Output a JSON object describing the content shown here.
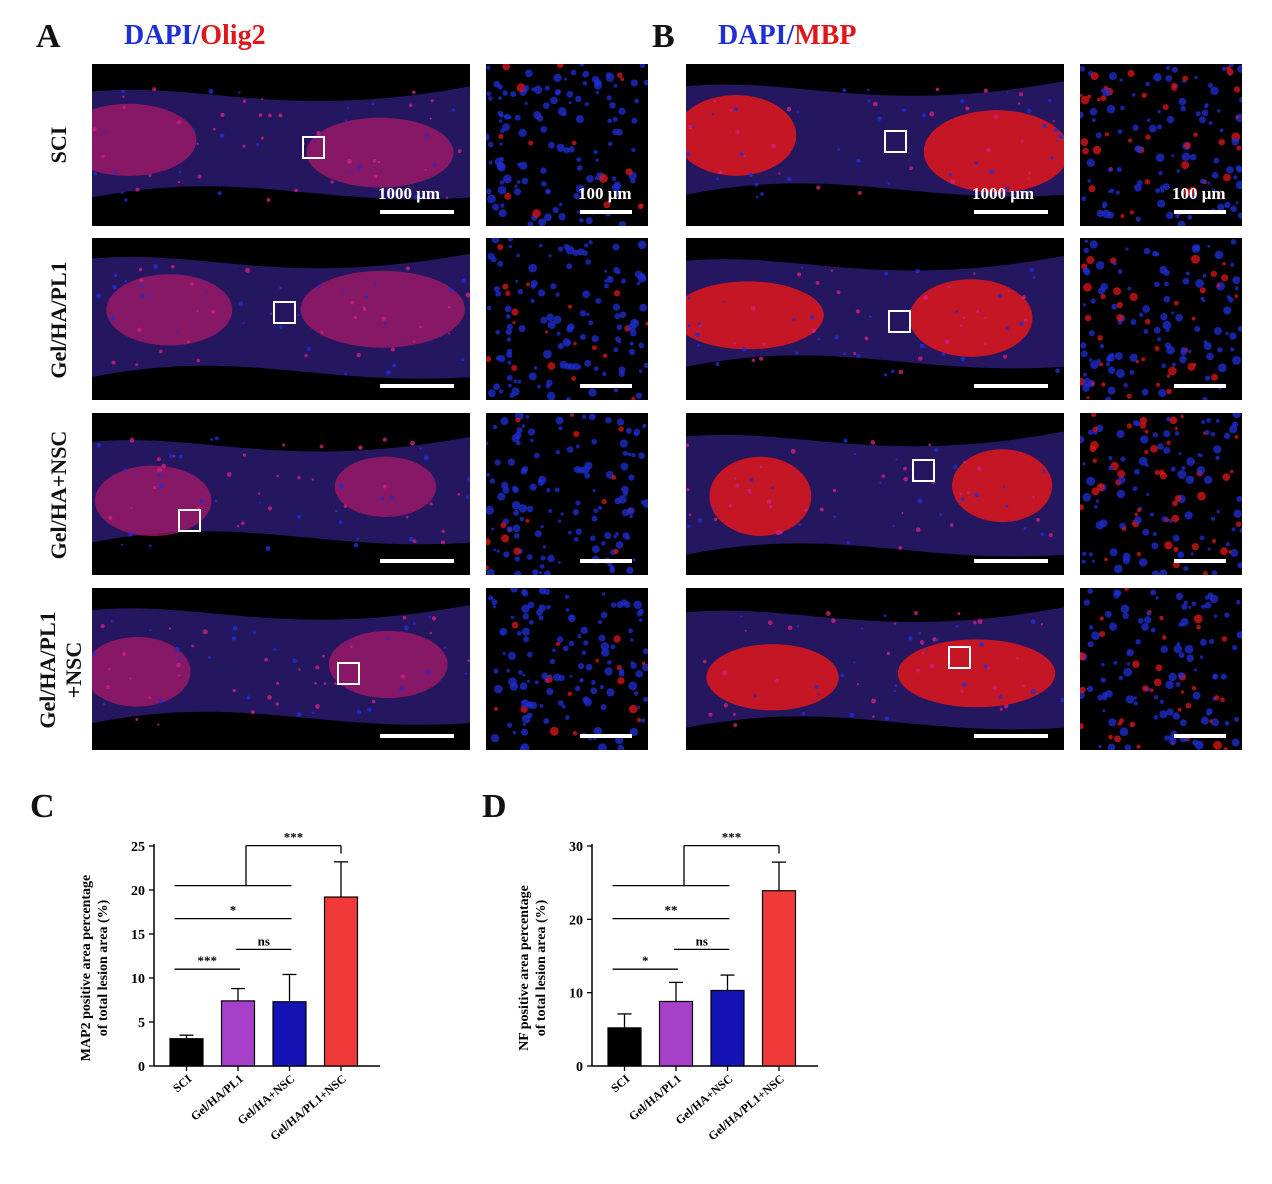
{
  "panels": {
    "A": {
      "letter": "A",
      "stain_parts": [
        "DAPI",
        "/",
        "Olig2"
      ],
      "scalebar_main": "1000 μm",
      "scalebar_zoom": "100 μm"
    },
    "B": {
      "letter": "B",
      "stain_parts": [
        "DAPI",
        "/",
        "MBP"
      ],
      "scalebar_main": "1000 μm",
      "scalebar_zoom": "100 μm"
    },
    "C": {
      "letter": "C"
    },
    "D": {
      "letter": "D"
    }
  },
  "row_labels": [
    "SCI",
    "Gel/HA/PL1",
    "Gel/HA+NSC",
    [
      "Gel/HA/PL1",
      "+NSC"
    ]
  ],
  "colors": {
    "dapi_blue": "#1f2fd6",
    "stain_red": "#e0161b",
    "bar_colors": [
      "#000000",
      "#a640c8",
      "#1414b4",
      "#f03a3a"
    ]
  },
  "chart_data": [
    {
      "type": "bar",
      "panel": "C",
      "categories": [
        "SCI",
        "Gel/HA/PL1",
        "Gel/HA+NSC",
        "Gel/HA/PL1+NSC"
      ],
      "values": [
        3.1,
        7.4,
        7.3,
        19.2
      ],
      "errors": [
        0.4,
        1.4,
        3.1,
        4.0
      ],
      "ylabel": [
        "MAP2 positive area percentage",
        "of total lesion area (%)"
      ],
      "xlabel": "",
      "ylim": [
        0,
        25
      ],
      "yticks": [
        0,
        5,
        10,
        15,
        20,
        25
      ],
      "significance": [
        {
          "from": 0,
          "to": 1,
          "label": "***"
        },
        {
          "from": 1,
          "to": 2,
          "label": "ns"
        },
        {
          "from": 0,
          "to": 2,
          "label": "*"
        },
        {
          "from": 0,
          "to": 3,
          "label": "***",
          "group": [
            0,
            1,
            2
          ]
        }
      ]
    },
    {
      "type": "bar",
      "panel": "D",
      "categories": [
        "SCI",
        "Gel/HA/PL1",
        "Gel/HA+NSC",
        "Gel/HA/PL1+NSC"
      ],
      "values": [
        5.2,
        8.8,
        10.3,
        23.9
      ],
      "errors": [
        1.9,
        2.6,
        2.1,
        3.9
      ],
      "ylabel": [
        "NF positive area percentage",
        "of total lesion area (%)"
      ],
      "xlabel": "",
      "ylim": [
        0,
        30
      ],
      "yticks": [
        0,
        10,
        20,
        30
      ],
      "significance": [
        {
          "from": 0,
          "to": 1,
          "label": "*"
        },
        {
          "from": 1,
          "to": 2,
          "label": "ns"
        },
        {
          "from": 0,
          "to": 2,
          "label": "**"
        },
        {
          "from": 0,
          "to": 3,
          "label": "***",
          "group": [
            0,
            1,
            2
          ]
        }
      ]
    }
  ]
}
